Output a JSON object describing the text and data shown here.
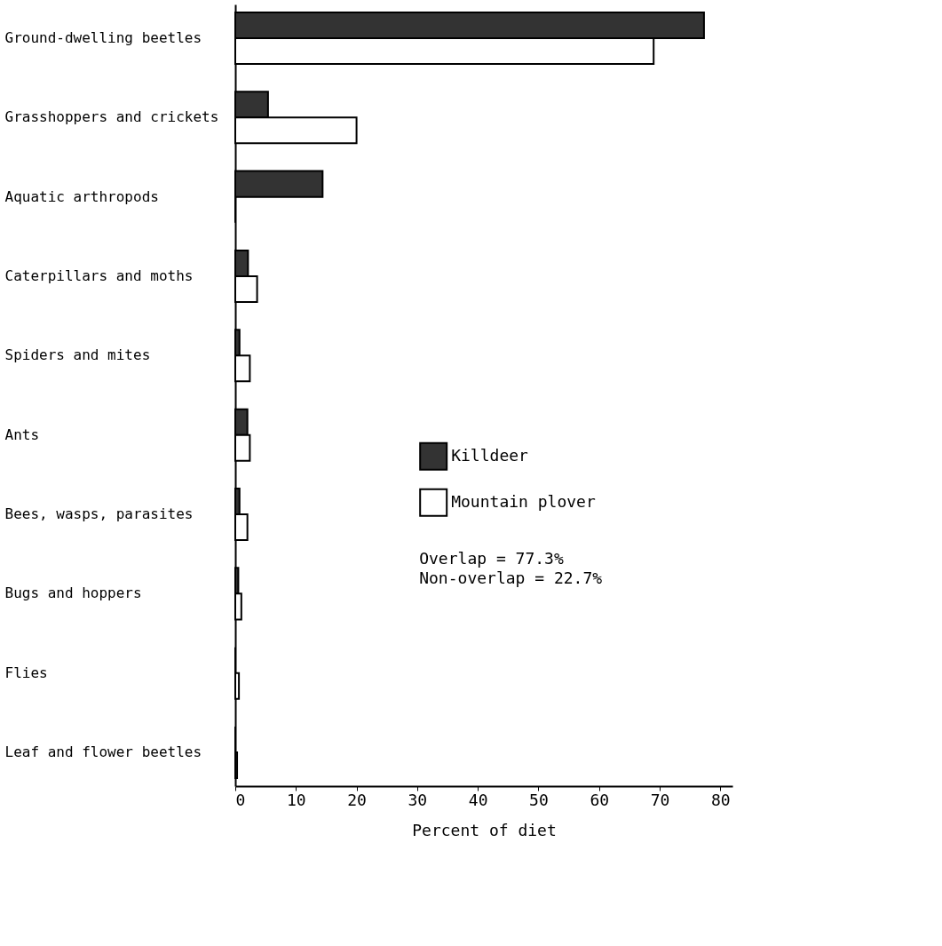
{
  "chart_data": {
    "type": "bar",
    "orientation": "horizontal",
    "xlabel": "Percent of diet",
    "categories": [
      "Ground-dwelling beetles",
      "Grasshoppers and crickets",
      "Aquatic arthropods",
      "Caterpillars and moths",
      "Spiders and mites",
      "Ants",
      "Bees, wasps, parasites",
      "Bugs and hoppers",
      "Flies",
      "Leaf and flower beetles"
    ],
    "series": [
      {
        "name": "Killdeer",
        "color": "#333333",
        "values": [
          77.3,
          5.4,
          14.4,
          2.1,
          0.7,
          2.0,
          0.7,
          0.5,
          0,
          0
        ]
      },
      {
        "name": "Mountain plover",
        "color": "#ffffff",
        "values": [
          69.0,
          20.0,
          0,
          3.6,
          2.4,
          2.4,
          2.0,
          1.0,
          0.6,
          0.3
        ]
      }
    ],
    "xlim": [
      0,
      82
    ],
    "xticks": [
      0,
      10,
      20,
      30,
      40,
      50,
      60,
      70,
      80
    ],
    "legend": "right",
    "grid": false,
    "annotations": [
      "Overlap = 77.3%",
      "Non-overlap = 22.7%"
    ]
  }
}
